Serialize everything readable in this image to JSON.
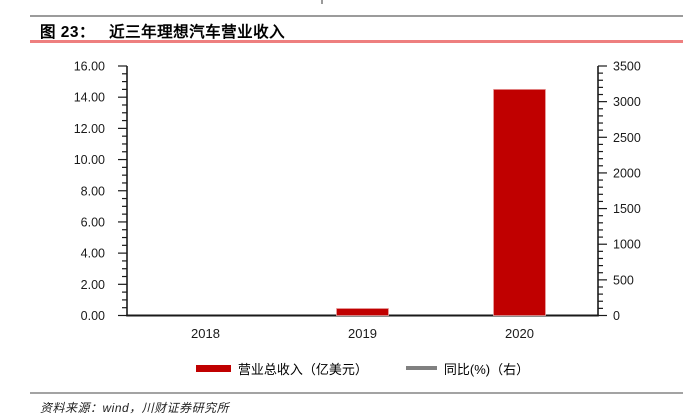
{
  "header": {
    "figure_label": "图 23：",
    "title": "近三年理想汽车营业收入",
    "underline_color": "#ee7f7f",
    "top_rule_color": "#9b9b9b"
  },
  "footer": {
    "source_text": "资料来源：wind，川财证券研究所",
    "rule_color": "#a3a3a3"
  },
  "chart_data": {
    "type": "bar",
    "categories": [
      "2018",
      "2019",
      "2020"
    ],
    "series": [
      {
        "name": "营业总收入（亿美元）",
        "type": "bar",
        "axis": "left",
        "color": "#c00000",
        "values": [
          0,
          0.45,
          14.5
        ]
      },
      {
        "name": "同比(%)（右）",
        "type": "line",
        "axis": "right",
        "color": "#808080",
        "values": [
          null,
          null,
          null
        ]
      }
    ],
    "left_axis": {
      "min": 0,
      "max": 16,
      "major_step": 2,
      "minor_step": 0.5,
      "tick_labels": [
        "0.00",
        "2.00",
        "4.00",
        "6.00",
        "8.00",
        "10.00",
        "12.00",
        "14.00",
        "16.00"
      ]
    },
    "right_axis": {
      "min": 0,
      "max": 3500,
      "major_step": 500,
      "minor_step": 100,
      "tick_labels": [
        "0",
        "500",
        "1000",
        "1500",
        "2000",
        "2500",
        "3000",
        "3500"
      ]
    },
    "grid": false,
    "legend_position": "bottom",
    "axis_color": "#1a1a1a"
  }
}
